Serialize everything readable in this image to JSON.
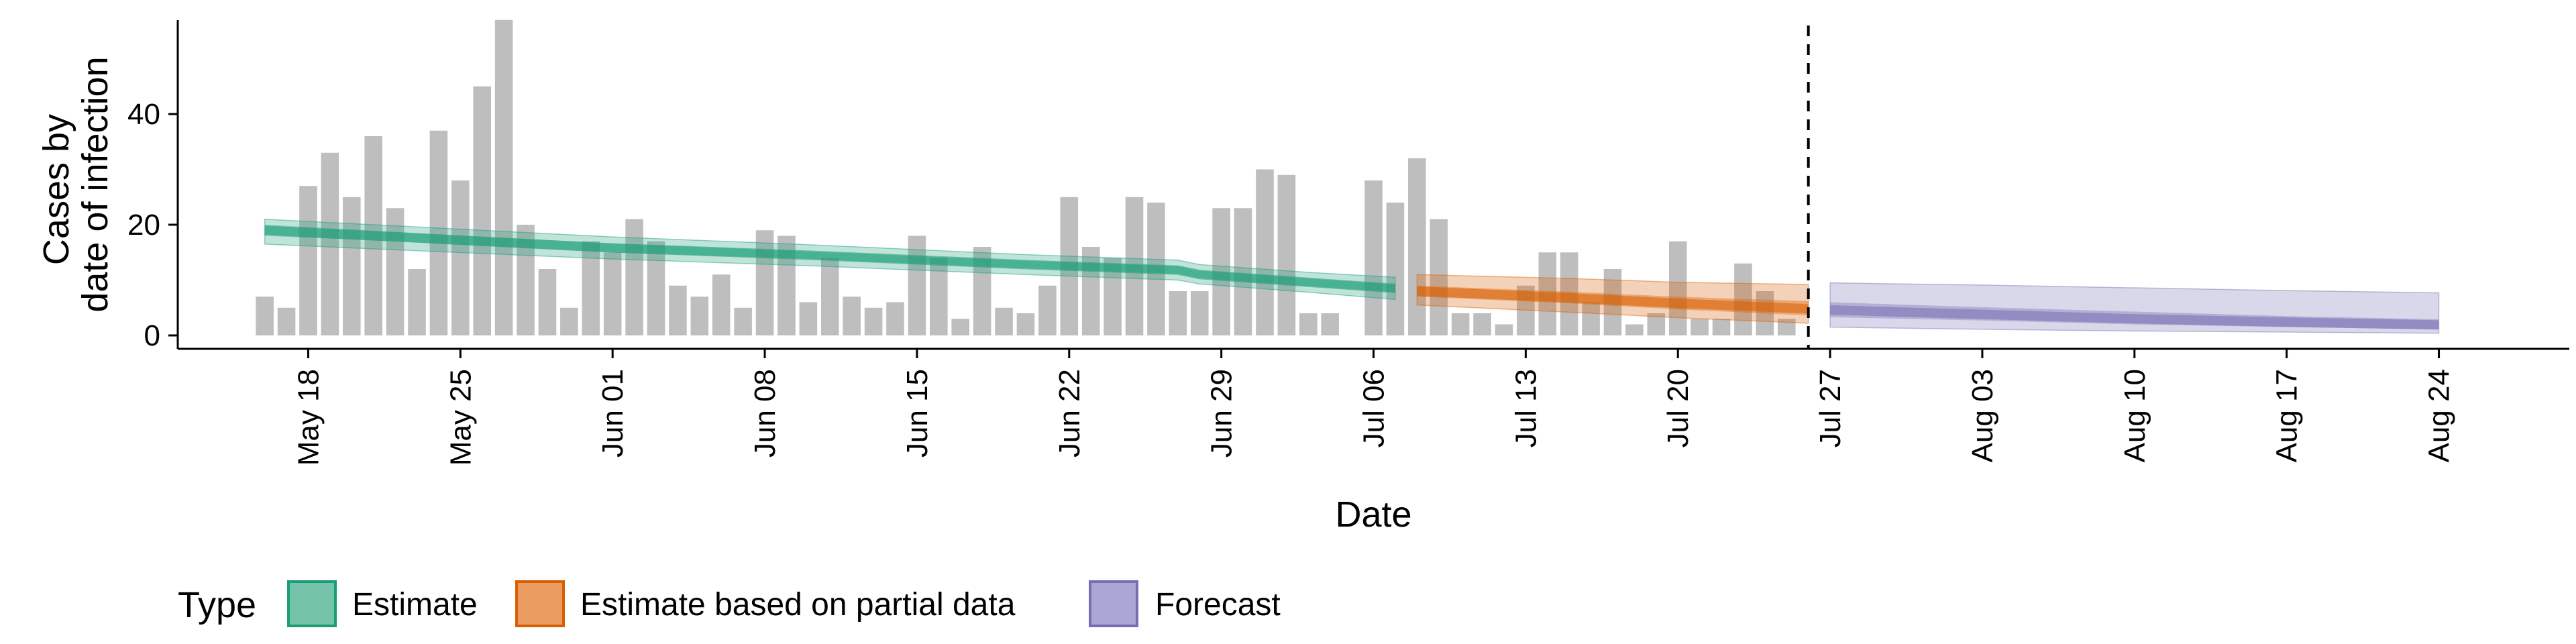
{
  "chart_data": {
    "type": "bar",
    "xlabel": "Date",
    "ylabel_lines": [
      "Cases by",
      "date of infection"
    ],
    "ylim": [
      0,
      60
    ],
    "y_ticks": [
      0,
      20,
      40
    ],
    "x_domain": [
      "2020-05-12",
      "2020-08-30"
    ],
    "x_ticks": [
      {
        "date": "2020-05-18",
        "label": "May 18"
      },
      {
        "date": "2020-05-25",
        "label": "May 25"
      },
      {
        "date": "2020-06-01",
        "label": "Jun 01"
      },
      {
        "date": "2020-06-08",
        "label": "Jun 08"
      },
      {
        "date": "2020-06-15",
        "label": "Jun 15"
      },
      {
        "date": "2020-06-22",
        "label": "Jun 22"
      },
      {
        "date": "2020-06-29",
        "label": "Jun 29"
      },
      {
        "date": "2020-07-06",
        "label": "Jul 06"
      },
      {
        "date": "2020-07-13",
        "label": "Jul 13"
      },
      {
        "date": "2020-07-20",
        "label": "Jul 20"
      },
      {
        "date": "2020-07-27",
        "label": "Jul 27"
      },
      {
        "date": "2020-08-03",
        "label": "Aug 03"
      },
      {
        "date": "2020-08-10",
        "label": "Aug 10"
      },
      {
        "date": "2020-08-17",
        "label": "Aug 17"
      },
      {
        "date": "2020-08-24",
        "label": "Aug 24"
      }
    ],
    "vline_date": "2020-07-26",
    "bars": {
      "start_date": "2020-05-16",
      "color": "#bebebe",
      "values": [
        7,
        5,
        27,
        33,
        25,
        36,
        23,
        12,
        37,
        28,
        45,
        57,
        20,
        12,
        5,
        17,
        15,
        21,
        17,
        9,
        7,
        11,
        5,
        19,
        18,
        6,
        14,
        7,
        5,
        6,
        18,
        14,
        3,
        16,
        5,
        4,
        9,
        25,
        16,
        14,
        25,
        24,
        8,
        8,
        23,
        23,
        30,
        29,
        4,
        4,
        0,
        28,
        24,
        32,
        21,
        4,
        4,
        2,
        9,
        15,
        15,
        6,
        12,
        2,
        4,
        17,
        3,
        3,
        13,
        8,
        3
      ]
    },
    "series": [
      {
        "name": "Estimate",
        "color": "#1b9e77",
        "points": [
          {
            "date": "2020-05-16",
            "median": 19,
            "lower90": 16.5,
            "upper90": 21,
            "lower50": 18,
            "upper50": 20
          },
          {
            "date": "2020-05-23",
            "median": 17.6,
            "lower90": 15.3,
            "upper90": 19.6,
            "lower50": 16.8,
            "upper50": 18.5
          },
          {
            "date": "2020-06-01",
            "median": 15.8,
            "lower90": 13.8,
            "upper90": 17.8,
            "lower50": 15,
            "upper50": 16.6
          },
          {
            "date": "2020-06-10",
            "median": 14.5,
            "lower90": 12.6,
            "upper90": 16.4,
            "lower50": 13.8,
            "upper50": 15.2
          },
          {
            "date": "2020-06-20",
            "median": 12.8,
            "lower90": 11,
            "upper90": 14.6,
            "lower50": 12.1,
            "upper50": 13.5
          },
          {
            "date": "2020-06-27",
            "median": 11.8,
            "lower90": 10,
            "upper90": 13.6,
            "lower50": 11.1,
            "upper50": 12.5
          },
          {
            "date": "2020-06-28",
            "median": 11,
            "lower90": 9.3,
            "upper90": 12.8,
            "lower50": 10.3,
            "upper50": 11.7
          },
          {
            "date": "2020-07-03",
            "median": 9.6,
            "lower90": 7.8,
            "upper90": 11.4,
            "lower50": 8.9,
            "upper50": 10.3
          },
          {
            "date": "2020-07-07",
            "median": 8.5,
            "lower90": 6.5,
            "upper90": 10.5,
            "lower50": 7.8,
            "upper50": 9.2
          }
        ]
      },
      {
        "name": "Estimate based on partial data",
        "color": "#d95f02",
        "points": [
          {
            "date": "2020-07-08",
            "median": 8,
            "lower90": 5.5,
            "upper90": 11,
            "lower50": 7,
            "upper50": 9
          },
          {
            "date": "2020-07-15",
            "median": 6.8,
            "lower90": 4.2,
            "upper90": 10.3,
            "lower50": 5.8,
            "upper50": 7.9
          },
          {
            "date": "2020-07-20",
            "median": 5.8,
            "lower90": 3.2,
            "upper90": 9.6,
            "lower50": 4.7,
            "upper50": 7
          },
          {
            "date": "2020-07-26",
            "median": 4.8,
            "lower90": 2.2,
            "upper90": 9.2,
            "lower50": 3.6,
            "upper50": 6.2
          }
        ]
      },
      {
        "name": "Forecast",
        "color": "#7570b3",
        "points": [
          {
            "date": "2020-07-27",
            "median": 4.6,
            "lower90": 1.5,
            "upper90": 9.5,
            "lower50": 3.3,
            "upper50": 6
          },
          {
            "date": "2020-08-03",
            "median": 3.8,
            "lower90": 1.1,
            "upper90": 9.1,
            "lower50": 2.7,
            "upper50": 5.1
          },
          {
            "date": "2020-08-10",
            "median": 3,
            "lower90": 0.8,
            "upper90": 8.6,
            "lower50": 2,
            "upper50": 4.3
          },
          {
            "date": "2020-08-17",
            "median": 2.4,
            "lower90": 0.6,
            "upper90": 8.1,
            "lower50": 1.5,
            "upper50": 3.5
          },
          {
            "date": "2020-08-24",
            "median": 1.9,
            "lower90": 0.4,
            "upper90": 7.7,
            "lower50": 1.1,
            "upper50": 2.9
          }
        ]
      }
    ],
    "legend": {
      "title": "Type",
      "position": "bottom",
      "items": [
        {
          "label": "Estimate",
          "fill": "#75c4a9",
          "stroke": "#1b9e77"
        },
        {
          "label": "Estimate based on partial data",
          "fill": "#eb9c61",
          "stroke": "#d95f02"
        },
        {
          "label": "Forecast",
          "fill": "#aaa7d4",
          "stroke": "#7570b3"
        }
      ]
    }
  }
}
